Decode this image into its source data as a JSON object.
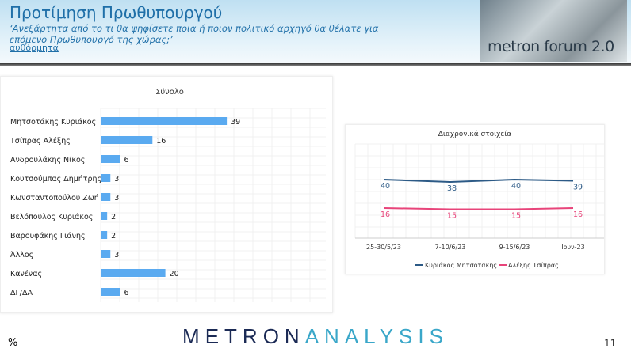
{
  "header": {
    "title": "Προτίμηση Πρωθυπουργού",
    "question": "‘Ανεξάρτητα από το τι θα ψηφίσετε ποια ή ποιον πολιτικό αρχηγό θα θέλατε για επόμενο Πρωθυπουργό της χώρας;’",
    "note": "αυθόρμητα",
    "logo_text": "metron forum 2.0"
  },
  "footer": {
    "unit": "%",
    "brand_a": "METRON",
    "brand_b": "ANALYSIS",
    "page": "11"
  },
  "chart_data": [
    {
      "type": "bar",
      "orientation": "horizontal",
      "title": "Σύνολο",
      "categories": [
        "Μητσοτάκης Κυριάκος",
        "Τσίπρας Αλέξης",
        "Ανδρουλάκης Νίκος",
        "Κουτσούμπας Δημήτρης",
        "Κωνσταντοπούλου Ζωή",
        "Βελόπουλος Κυριάκος",
        "Βαρουφάκης Γιάνης",
        "Άλλος",
        "Κανένας",
        "ΔΓ/ΔΑ"
      ],
      "values": [
        39,
        16,
        6,
        3,
        3,
        2,
        2,
        3,
        20,
        6
      ],
      "color": "#5aaaf0",
      "grid": true
    },
    {
      "type": "line",
      "title": "Διαχρονικά στοιχεία",
      "categories": [
        "25-30/5/23",
        "7-10/6/23",
        "9-15/6/23",
        "Ιουν-23"
      ],
      "series": [
        {
          "name": "Κυριάκος Μητσοτάκης",
          "values": [
            40,
            38,
            40,
            39
          ],
          "color": "#2c5a86"
        },
        {
          "name": "Αλέξης Τσίπρας",
          "values": [
            16,
            15,
            15,
            16
          ],
          "color": "#e8447a"
        }
      ],
      "grid": true,
      "legend": "bottom"
    }
  ]
}
